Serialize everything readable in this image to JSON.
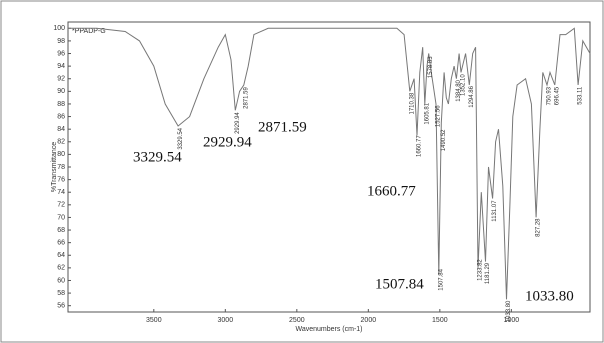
{
  "chart_data": {
    "type": "line",
    "xlabel": "Wavenumbers (cm-1)",
    "ylabel": "%Transmittance",
    "xlim": [
      4100,
      450
    ],
    "xticks": [
      3500,
      3000,
      2500,
      2000,
      1500,
      1000
    ],
    "ylim": [
      55,
      101
    ],
    "yticks": [
      56,
      58,
      60,
      62,
      64,
      66,
      68,
      70,
      72,
      74,
      76,
      78,
      80,
      82,
      84,
      86,
      88,
      90,
      92,
      94,
      96,
      98,
      100
    ],
    "x": [
      4100,
      3900,
      3700,
      3600,
      3500,
      3420,
      3330,
      3250,
      3150,
      3050,
      3000,
      2960,
      2930,
      2900,
      2871,
      2840,
      2800,
      2700,
      2000,
      1800,
      1750,
      1710,
      1680,
      1660,
      1640,
      1620,
      1605,
      1590,
      1578,
      1560,
      1527,
      1507,
      1490,
      1470,
      1455,
      1440,
      1420,
      1400,
      1384,
      1365,
      1352,
      1320,
      1294,
      1270,
      1250,
      1233,
      1210,
      1181,
      1160,
      1131,
      1110,
      1090,
      1060,
      1034,
      1010,
      990,
      960,
      900,
      860,
      827,
      800,
      780,
      751,
      730,
      696,
      660,
      620,
      560,
      533,
      500,
      450
    ],
    "series": [
      {
        "name": "*PPADP-G",
        "color": "#777777",
        "values": [
          100,
          100,
          99.5,
          98,
          94,
          88,
          84.5,
          86,
          92,
          97,
          99,
          95,
          87,
          90,
          91,
          94,
          99,
          100,
          100,
          100,
          99,
          90,
          92,
          83,
          93,
          97,
          88,
          94,
          96,
          93,
          88,
          61,
          85,
          93,
          89,
          88,
          92,
          94,
          92,
          96,
          93,
          96,
          91,
          96,
          97,
          62,
          74,
          63,
          78,
          73,
          82,
          84,
          75,
          57,
          72,
          86,
          91,
          92,
          88,
          70,
          84,
          93,
          91,
          93,
          91,
          99,
          99,
          100,
          91,
          98,
          96
        ]
      }
    ],
    "peak_labels": [
      "3329.54",
      "2929.94",
      "2871.59",
      "1710.38",
      "1660.77",
      "1605.81",
      "1578.83",
      "1527.56",
      "1507.84",
      "1490.52",
      "1384.80",
      "1352.10",
      "1294.86",
      "1233.82",
      "1181.29",
      "1131.07",
      "1033.80",
      "827.28",
      "750.93",
      "696.45",
      "533.11"
    ],
    "callouts": [
      "3329.54",
      "2929.94",
      "2871.59",
      "1660.77",
      "1507.84",
      "1033.80"
    ]
  }
}
